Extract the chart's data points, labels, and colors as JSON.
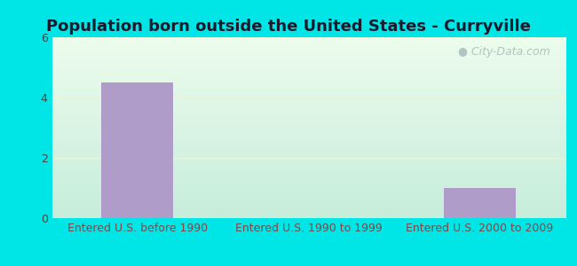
{
  "title": "Population born outside the United States - Curryville",
  "categories": [
    "Entered U.S. before 1990",
    "Entered U.S. 1990 to 1999",
    "Entered U.S. 2000 to 2009"
  ],
  "values": [
    4.5,
    0,
    1.0
  ],
  "bar_color": "#b09cc8",
  "bar_width": 0.42,
  "ylim": [
    0,
    6
  ],
  "yticks": [
    0,
    2,
    4,
    6
  ],
  "xlabel_color": "#7a4a4a",
  "title_fontsize": 13,
  "tick_label_fontsize": 9,
  "background_outer": "#00e5e5",
  "watermark_text": "City-Data.com",
  "watermark_color": "#aabfbf",
  "grid_color": "#ddeecc",
  "title_color": "#1a1a2e"
}
